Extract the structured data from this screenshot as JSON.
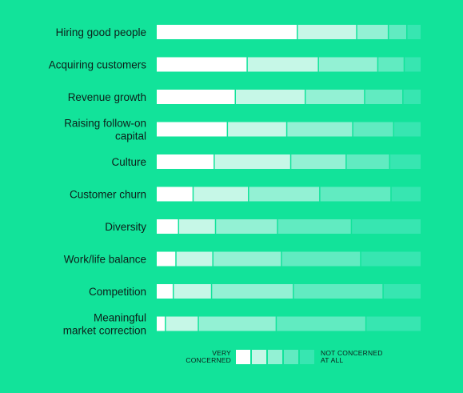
{
  "chart_data": {
    "type": "bar",
    "stacked": true,
    "normalized": true,
    "categories": [
      [
        "Hiring good people"
      ],
      [
        "Acquiring customers"
      ],
      [
        "Revenue growth"
      ],
      [
        "Raising follow-on",
        "capital"
      ],
      [
        "Culture"
      ],
      [
        "Customer churn"
      ],
      [
        "Diversity"
      ],
      [
        "Work/life balance"
      ],
      [
        "Competition"
      ],
      [
        "Meaningful",
        "market correction"
      ]
    ],
    "series": [
      {
        "values": [
          53.5,
          34.5,
          30.0,
          27.0,
          22.0,
          14.0,
          8.5,
          7.5,
          6.5,
          3.5
        ]
      },
      {
        "values": [
          22.5,
          27.0,
          26.5,
          22.5,
          29.0,
          21.0,
          14.0,
          14.0,
          14.5,
          12.5
        ]
      },
      {
        "values": [
          12.0,
          22.5,
          22.5,
          25.0,
          21.0,
          27.0,
          23.5,
          26.0,
          31.0,
          29.5
        ]
      },
      {
        "values": [
          7.0,
          10.0,
          14.5,
          15.5,
          16.5,
          27.0,
          28.0,
          30.0,
          34.0,
          34.0
        ]
      },
      {
        "values": [
          5.0,
          6.0,
          6.5,
          10.0,
          11.5,
          11.0,
          26.0,
          22.5,
          14.0,
          20.5
        ]
      }
    ],
    "xlim": [
      0,
      100
    ],
    "colors": [
      "#FFFFFF",
      "#C6F7E7",
      "#93F1D4",
      "#61EBC1",
      "#37E6B1"
    ],
    "legend": {
      "placement": "bottom-center",
      "left_label": [
        "VERY",
        "CONCERNED"
      ],
      "right_label": [
        "NOT CONCERNED",
        "AT ALL"
      ]
    }
  }
}
